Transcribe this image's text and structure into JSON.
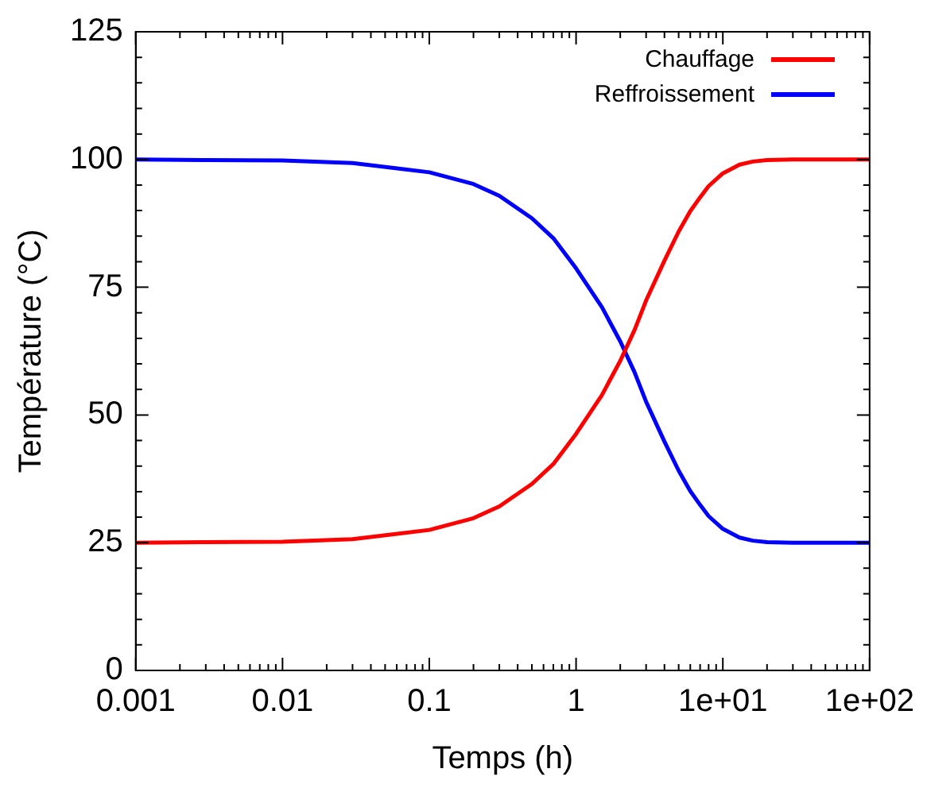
{
  "chart_data": {
    "type": "line",
    "xlabel": "Temps (h)",
    "ylabel": "Température (°C)",
    "log": "x",
    "grid": false,
    "legend": "top right",
    "marker": "none",
    "line_style": "solid",
    "xlim": [
      0.001,
      100
    ],
    "ylim": [
      0,
      125
    ],
    "xticks": [
      0.001,
      {
        "value": 0.002,
        "label": null
      },
      {
        "value": 0.003,
        "label": null
      },
      {
        "value": 0.004,
        "label": null
      },
      {
        "value": 0.005,
        "label": null
      },
      {
        "value": 0.006,
        "label": null
      },
      {
        "value": 0.007,
        "label": null
      },
      {
        "value": 0.008,
        "label": null
      },
      {
        "value": 0.009,
        "label": null
      },
      0.01,
      {
        "value": 0.02,
        "label": null
      },
      {
        "value": 0.03,
        "label": null
      },
      {
        "value": 0.04,
        "label": null
      },
      {
        "value": 0.05,
        "label": null
      },
      {
        "value": 0.06,
        "label": null
      },
      {
        "value": 0.07,
        "label": null
      },
      {
        "value": 0.08,
        "label": null
      },
      {
        "value": 0.09,
        "label": null
      },
      0.1,
      {
        "value": 0.2,
        "label": null
      },
      {
        "value": 0.3,
        "label": null
      },
      {
        "value": 0.4,
        "label": null
      },
      {
        "value": 0.5,
        "label": null
      },
      {
        "value": 0.6,
        "label": null
      },
      {
        "value": 0.7,
        "label": null
      },
      {
        "value": 0.8,
        "label": null
      },
      {
        "value": 0.9,
        "label": null
      },
      1,
      {
        "value": 2,
        "label": null
      },
      {
        "value": 3,
        "label": null
      },
      {
        "value": 4,
        "label": null
      },
      {
        "value": 5,
        "label": null
      },
      {
        "value": 6,
        "label": null
      },
      {
        "value": 7,
        "label": null
      },
      {
        "value": 8,
        "label": null
      },
      {
        "value": 9,
        "label": null
      },
      {
        "value": 10,
        "label": "1e+01"
      },
      {
        "value": 20,
        "label": null
      },
      {
        "value": 30,
        "label": null
      },
      {
        "value": 40,
        "label": null
      },
      {
        "value": 50,
        "label": null
      },
      {
        "value": 60,
        "label": null
      },
      {
        "value": 70,
        "label": null
      },
      {
        "value": 80,
        "label": null
      },
      {
        "value": 90,
        "label": null
      },
      {
        "value": 100,
        "label": "1e+02"
      }
    ],
    "yticks": [
      0,
      {
        "value": 5,
        "label": null
      },
      {
        "value": 10,
        "label": null
      },
      {
        "value": 15,
        "label": null
      },
      {
        "value": 20,
        "label": null
      },
      25,
      {
        "value": 30,
        "label": null
      },
      {
        "value": 35,
        "label": null
      },
      {
        "value": 40,
        "label": null
      },
      {
        "value": 45,
        "label": null
      },
      50,
      {
        "value": 55,
        "label": null
      },
      {
        "value": 60,
        "label": null
      },
      {
        "value": 65,
        "label": null
      },
      {
        "value": 70,
        "label": null
      },
      75,
      {
        "value": 80,
        "label": null
      },
      {
        "value": 85,
        "label": null
      },
      {
        "value": 90,
        "label": null
      },
      {
        "value": 95,
        "label": null
      },
      100,
      {
        "value": 105,
        "label": null
      },
      {
        "value": 110,
        "label": null
      },
      {
        "value": 115,
        "label": null
      },
      {
        "value": 120,
        "label": null
      },
      125
    ],
    "x": [
      0.001,
      0.003,
      0.01,
      0.03,
      0.1,
      0.2,
      0.3,
      0.5,
      0.7,
      1,
      1.5,
      2,
      2.5,
      3,
      4,
      5,
      6,
      7,
      8,
      10,
      13,
      16,
      20,
      30,
      50,
      100
    ],
    "series": [
      {
        "name": "Chauffage",
        "color": "#ff0000",
        "values": [
          25.0,
          25.1,
          25.2,
          25.7,
          27.5,
          29.8,
          32.1,
          36.5,
          40.4,
          46.3,
          53.9,
          60.6,
          66.6,
          72.4,
          80.2,
          85.9,
          89.9,
          92.6,
          94.8,
          97.3,
          99.0,
          99.6,
          99.9,
          100,
          100,
          100
        ]
      },
      {
        "name": "Reffroissement",
        "color": "#0000ff",
        "values": [
          100,
          99.9,
          99.8,
          99.3,
          97.5,
          95.2,
          92.9,
          88.5,
          84.6,
          78.7,
          71.1,
          64.4,
          58.4,
          52.6,
          44.8,
          39.1,
          35.1,
          32.4,
          30.2,
          27.7,
          26.0,
          25.4,
          25.1,
          25,
          25,
          25
        ]
      }
    ]
  }
}
